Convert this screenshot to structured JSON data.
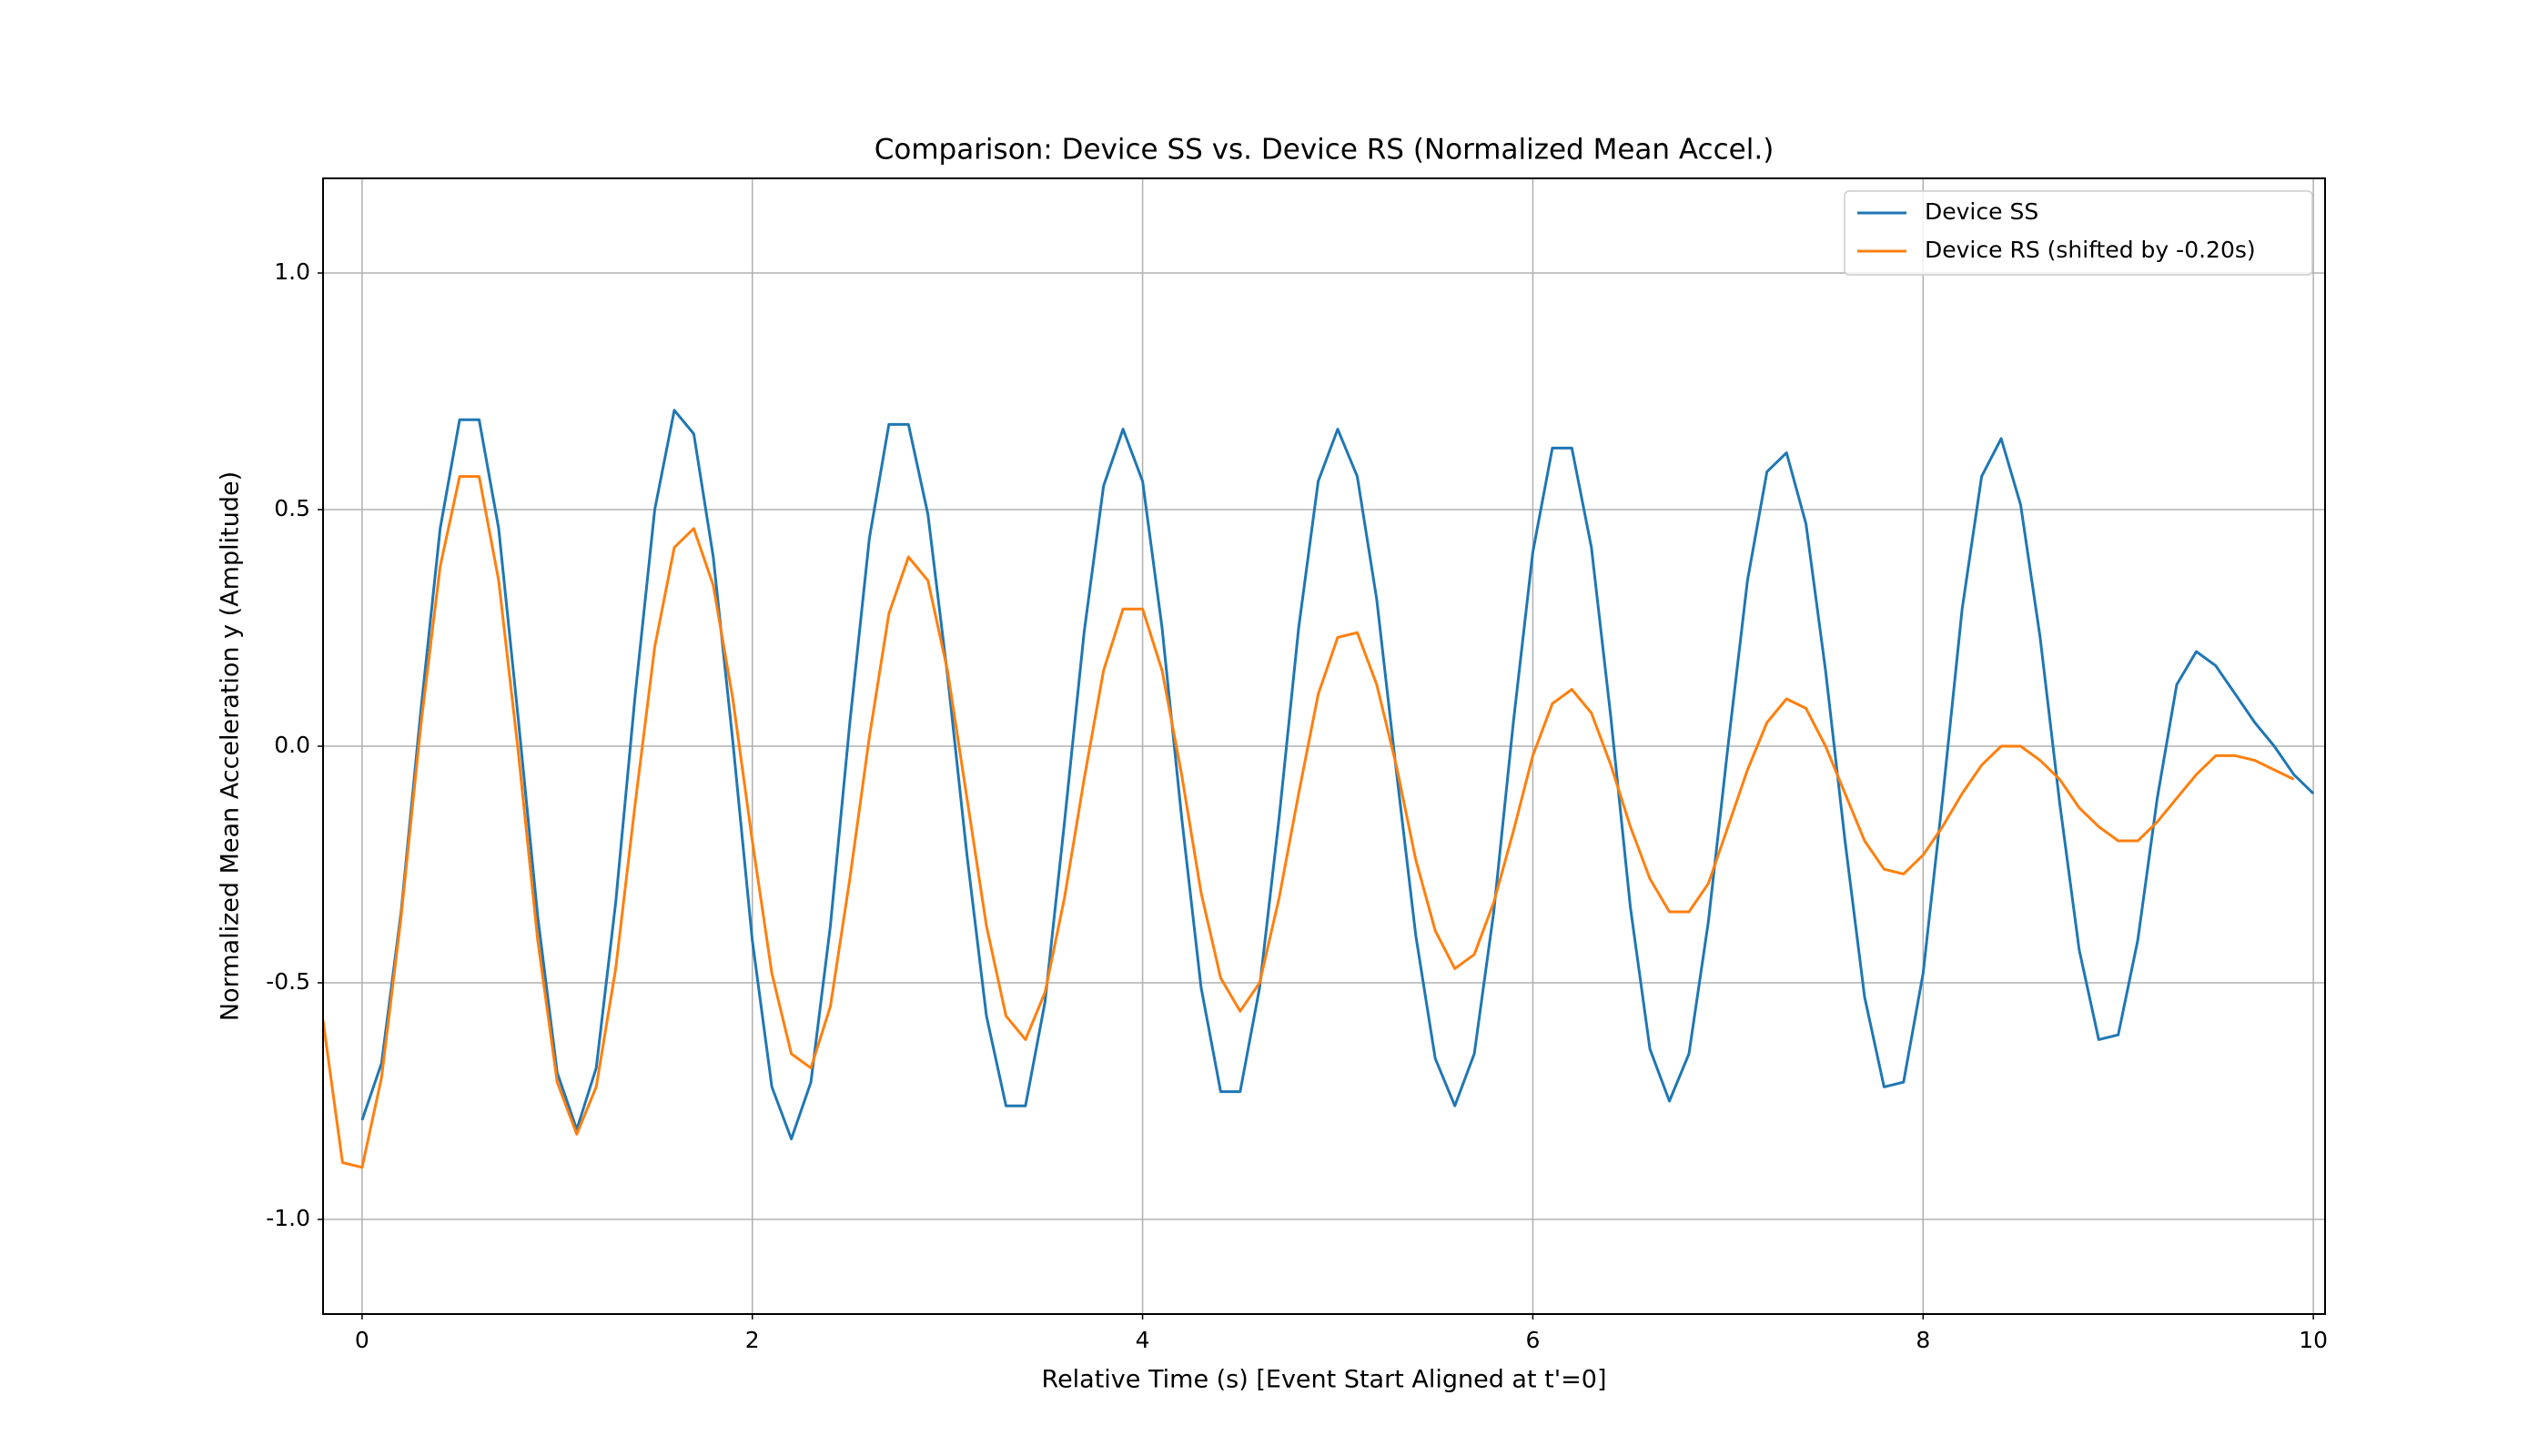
{
  "chart_data": {
    "type": "line",
    "title": "Comparison: Device SS vs. Device RS (Normalized Mean Accel.)",
    "x_label": "Relative Time (s) [Event Start Aligned at t'=0]",
    "y_label": "Normalized Mean Acceleration y (Amplitude)",
    "x": [
      -0.2,
      -0.1,
      0,
      0.1,
      0.2,
      0.3,
      0.4,
      0.5,
      0.6,
      0.7,
      0.8,
      0.9,
      1,
      1.1,
      1.2,
      1.3,
      1.4,
      1.5,
      1.6,
      1.7,
      1.8,
      1.9,
      2,
      2.1,
      2.2,
      2.3,
      2.4,
      2.5,
      2.6,
      2.7,
      2.8,
      2.9,
      3,
      3.1,
      3.2,
      3.3,
      3.4,
      3.5,
      3.6,
      3.7,
      3.8,
      3.9,
      4,
      4.1,
      4.2,
      4.3,
      4.4,
      4.5,
      4.6,
      4.7,
      4.8,
      4.9,
      5,
      5.1,
      5.2,
      5.3,
      5.4,
      5.5,
      5.6,
      5.7,
      5.8,
      5.9,
      6,
      6.1,
      6.2,
      6.3,
      6.4,
      6.5,
      6.6,
      6.7,
      6.8,
      6.9,
      7,
      7.1,
      7.2,
      7.3,
      7.4,
      7.5,
      7.6,
      7.7,
      7.8,
      7.9,
      8,
      8.1,
      8.2,
      8.3,
      8.4,
      8.5,
      8.6,
      8.7,
      8.8,
      8.9,
      9,
      9.1,
      9.2,
      9.3,
      9.4,
      9.5,
      9.6,
      9.7,
      9.8,
      9.9,
      10
    ],
    "series": [
      {
        "name": "Device SS",
        "color": "#1f77b4",
        "values": [
          null,
          null,
          -0.79,
          -0.67,
          -0.35,
          0.07,
          0.46,
          0.69,
          0.69,
          0.46,
          0.06,
          -0.36,
          -0.69,
          -0.81,
          -0.68,
          -0.33,
          0.11,
          0.5,
          0.71,
          0.66,
          0.4,
          0.01,
          -0.41,
          -0.72,
          -0.83,
          -0.71,
          -0.38,
          0.05,
          0.44,
          0.68,
          0.68,
          0.49,
          0.15,
          -0.23,
          -0.57,
          -0.76,
          -0.76,
          -0.54,
          -0.16,
          0.24,
          0.55,
          0.67,
          0.56,
          0.25,
          -0.15,
          -0.51,
          -0.73,
          -0.73,
          -0.51,
          -0.15,
          0.25,
          0.56,
          0.67,
          0.57,
          0.31,
          -0.05,
          -0.4,
          -0.66,
          -0.76,
          -0.65,
          -0.35,
          0.05,
          0.41,
          0.63,
          0.63,
          0.42,
          0.06,
          -0.34,
          -0.64,
          -0.75,
          -0.65,
          -0.37,
          0,
          0.35,
          0.58,
          0.62,
          0.47,
          0.16,
          -0.2,
          -0.53,
          -0.72,
          -0.71,
          -0.48,
          -0.11,
          0.29,
          0.57,
          0.65,
          0.51,
          0.23,
          -0.12,
          -0.43,
          -0.62,
          -0.61,
          -0.41,
          -0.11,
          0.13,
          0.2,
          0.17,
          0.11,
          0.05,
          0,
          -0.06,
          -0.1
        ]
      },
      {
        "name": "Device RS (shifted by -0.20s)",
        "color": "#ff7f0e",
        "values": [
          -0.58,
          -0.88,
          -0.89,
          -0.7,
          -0.36,
          0.04,
          0.38,
          0.57,
          0.57,
          0.35,
          -0.01,
          -0.41,
          -0.71,
          -0.82,
          -0.72,
          -0.47,
          -0.12,
          0.21,
          0.42,
          0.46,
          0.34,
          0.1,
          -0.2,
          -0.48,
          -0.65,
          -0.68,
          -0.55,
          -0.28,
          0.02,
          0.28,
          0.4,
          0.35,
          0.16,
          -0.11,
          -0.38,
          -0.57,
          -0.62,
          -0.52,
          -0.32,
          -0.07,
          0.16,
          0.29,
          0.29,
          0.16,
          -0.06,
          -0.31,
          -0.49,
          -0.56,
          -0.5,
          -0.32,
          -0.1,
          0.11,
          0.23,
          0.24,
          0.13,
          -0.04,
          -0.24,
          -0.39,
          -0.47,
          -0.44,
          -0.33,
          -0.18,
          -0.02,
          0.09,
          0.12,
          0.07,
          -0.04,
          -0.17,
          -0.28,
          -0.35,
          -0.35,
          -0.29,
          -0.17,
          -0.05,
          0.05,
          0.1,
          0.08,
          0,
          -0.1,
          -0.2,
          -0.26,
          -0.27,
          -0.23,
          -0.17,
          -0.1,
          -0.04,
          0,
          0,
          -0.03,
          -0.07,
          -0.13,
          -0.17,
          -0.2,
          -0.2,
          -0.16,
          -0.11,
          -0.06,
          -0.02,
          -0.02,
          -0.03,
          -0.05,
          -0.07,
          null
        ]
      }
    ],
    "xlim": [
      -0.2,
      10.06
    ],
    "ylim": [
      -1.2,
      1.2
    ],
    "xticks": [
      0,
      2,
      4,
      6,
      8,
      10
    ],
    "yticks": [
      {
        "value": -1,
        "label": "-1.0"
      },
      {
        "value": -0.5,
        "label": "-0.5"
      },
      {
        "value": 0,
        "label": "0.0"
      },
      {
        "value": 0.5,
        "label": "0.5"
      },
      {
        "value": 1,
        "label": "1.0"
      }
    ],
    "grid": true,
    "legend": "upper right"
  }
}
